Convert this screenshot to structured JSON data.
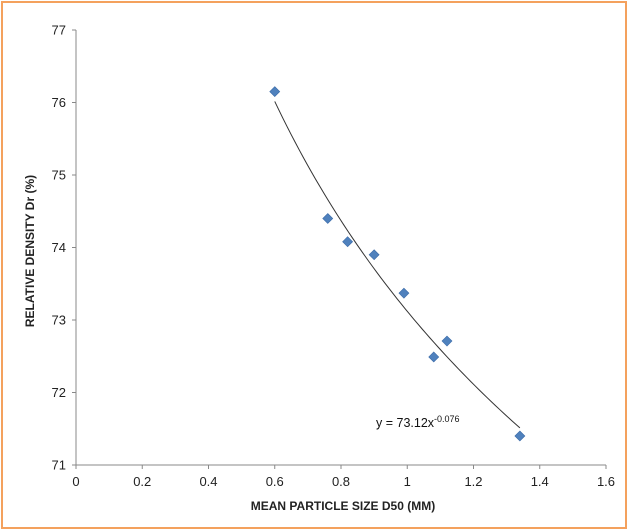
{
  "chart_data": {
    "type": "scatter",
    "xlabel": "MEAN PARTICLE SIZE D50 (MM)",
    "ylabel": "RELATIVE DENSITY Dr (%)",
    "xlim": [
      0,
      1.6
    ],
    "ylim": [
      71,
      77
    ],
    "x_ticks": [
      "0",
      "0.2",
      "0.4",
      "0.6",
      "0.8",
      "1",
      "1.2",
      "1.4",
      "1.6"
    ],
    "y_ticks": [
      "71",
      "72",
      "73",
      "74",
      "75",
      "76",
      "77"
    ],
    "grid": false,
    "legend": "none",
    "marker": "diamond",
    "colors": {
      "marker": "#4f81bd",
      "trendline": "#333333",
      "frame": "#f4a15d",
      "axis": "#888888"
    },
    "series": [
      {
        "points": [
          {
            "x": 0.6,
            "y": 76.15
          },
          {
            "x": 0.76,
            "y": 74.4
          },
          {
            "x": 0.82,
            "y": 74.08
          },
          {
            "x": 0.9,
            "y": 73.9
          },
          {
            "x": 0.99,
            "y": 73.37
          },
          {
            "x": 1.08,
            "y": 72.49
          },
          {
            "x": 1.12,
            "y": 72.71
          },
          {
            "x": 1.34,
            "y": 71.4
          }
        ]
      }
    ],
    "trendline": {
      "type": "power",
      "a": 73.12,
      "b": -0.076,
      "x_range": [
        0.6,
        1.34
      ],
      "equation_base": "y = 73.12x",
      "equation_exponent": "-0.076"
    }
  }
}
